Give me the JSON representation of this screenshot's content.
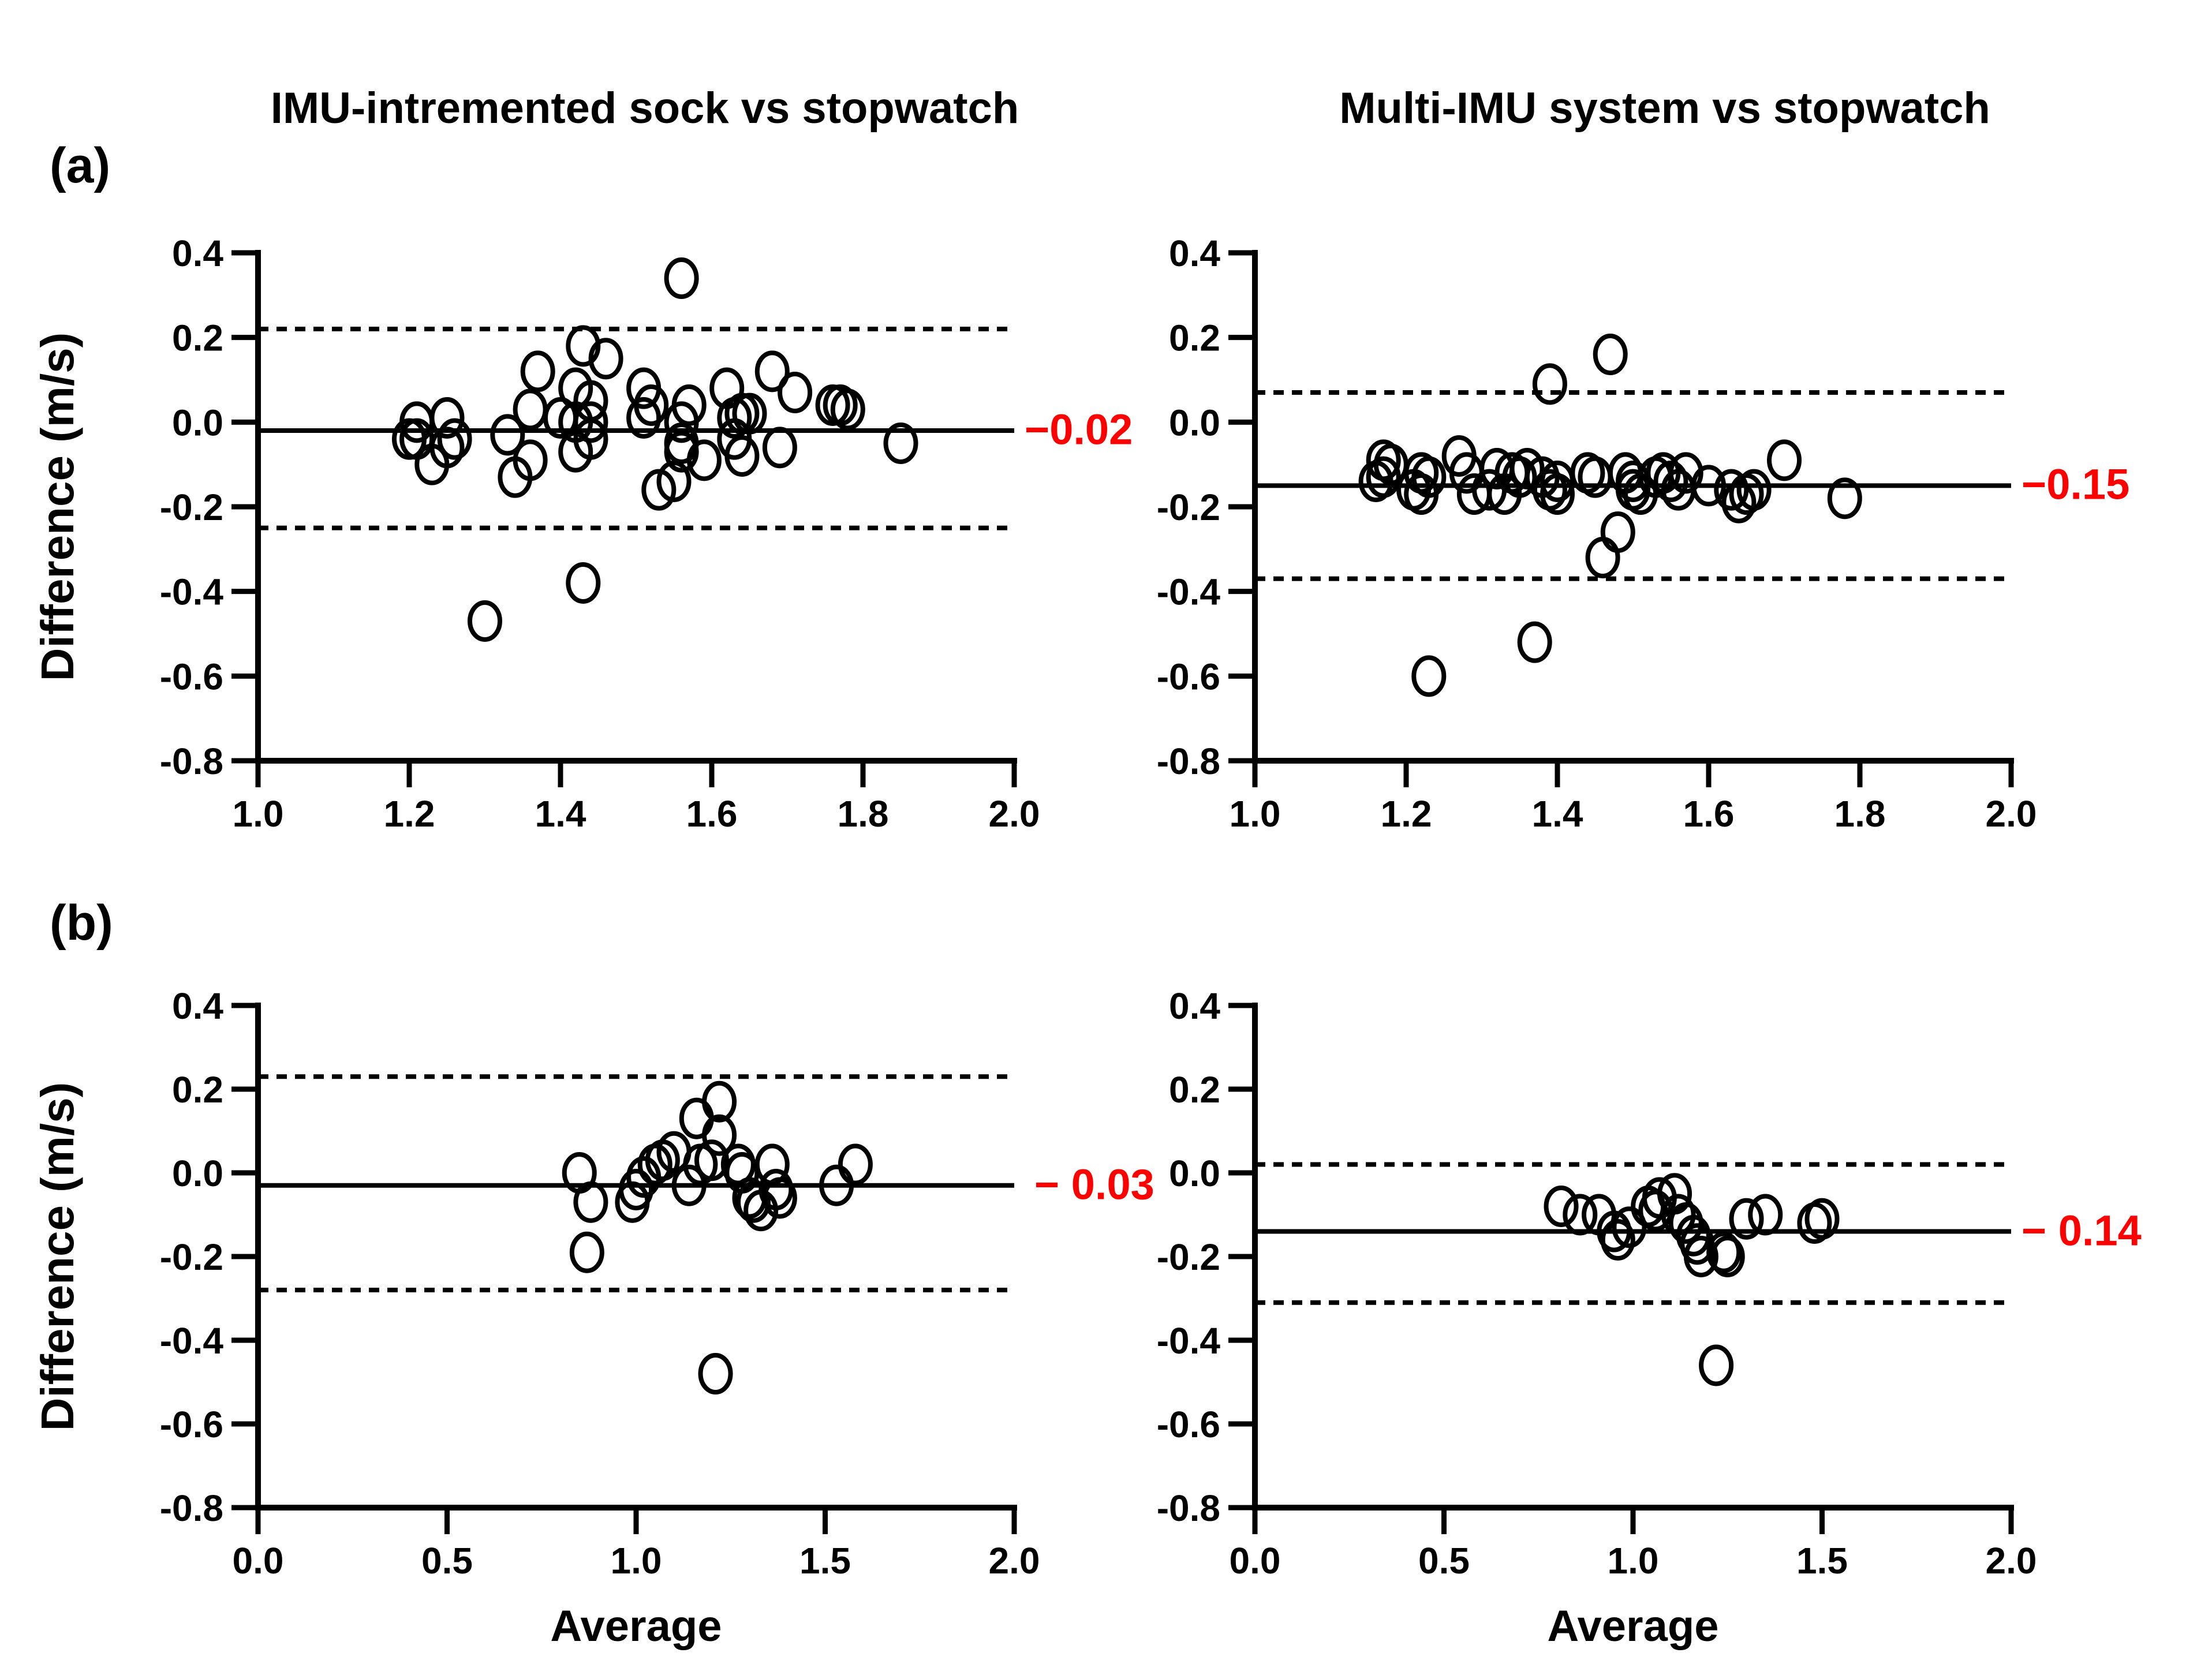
{
  "figure": {
    "titles": {
      "left": "IMU-intremented sock vs stopwatch",
      "right": "Multi-IMU system vs stopwatch"
    },
    "panel_labels": {
      "a": "(a)",
      "b": "(b)"
    },
    "y_axis_label": "Difference (m/s)",
    "x_axis_label": "Average",
    "colors": {
      "text": "#000000",
      "annotation_red": "#FF0000",
      "background": "#FFFFFF"
    },
    "marker": "open-circle"
  },
  "chart_data": [
    {
      "id": "a_left",
      "type": "scatter",
      "panel": "(a)",
      "title": "IMU-intremented sock vs stopwatch",
      "xlabel": "",
      "ylabel": "Difference (m/s)",
      "xlim": [
        1.0,
        2.0
      ],
      "ylim": [
        -0.8,
        0.4
      ],
      "xtick_values": [
        1.0,
        1.2,
        1.4,
        1.6,
        1.8,
        2.0
      ],
      "xtick_labels": [
        "1.0",
        "1.2",
        "1.4",
        "1.6",
        "1.8",
        "2.0"
      ],
      "ytick_values": [
        0.4,
        0.2,
        0.0,
        -0.2,
        -0.4,
        -0.6,
        -0.8
      ],
      "ytick_labels": [
        "0.4",
        "0.2",
        "0.0",
        "-0.2",
        "-0.4",
        "-0.6",
        "-0.8"
      ],
      "mean_bias": -0.02,
      "mean_label": "−0.02",
      "loa_upper": 0.22,
      "loa_lower": -0.25,
      "points": [
        [
          1.56,
          0.34
        ],
        [
          1.43,
          0.18
        ],
        [
          1.46,
          0.15
        ],
        [
          1.37,
          0.12
        ],
        [
          1.68,
          0.12
        ],
        [
          1.42,
          0.08
        ],
        [
          1.51,
          0.08
        ],
        [
          1.62,
          0.08
        ],
        [
          1.71,
          0.07
        ],
        [
          1.44,
          0.05
        ],
        [
          1.52,
          0.04
        ],
        [
          1.57,
          0.04
        ],
        [
          1.76,
          0.04
        ],
        [
          1.77,
          0.04
        ],
        [
          1.78,
          0.03
        ],
        [
          1.36,
          0.03
        ],
        [
          1.64,
          0.02
        ],
        [
          1.65,
          0.02
        ],
        [
          1.4,
          0.01
        ],
        [
          1.25,
          0.01
        ],
        [
          1.51,
          0.01
        ],
        [
          1.63,
          0.01
        ],
        [
          1.21,
          0.0
        ],
        [
          1.42,
          0.0
        ],
        [
          1.44,
          0.0
        ],
        [
          1.56,
          0.0
        ],
        [
          1.2,
          -0.04
        ],
        [
          1.21,
          -0.04
        ],
        [
          1.26,
          -0.04
        ],
        [
          1.33,
          -0.03
        ],
        [
          1.44,
          -0.04
        ],
        [
          1.63,
          -0.04
        ],
        [
          1.25,
          -0.06
        ],
        [
          1.56,
          -0.05
        ],
        [
          1.69,
          -0.06
        ],
        [
          1.85,
          -0.05
        ],
        [
          1.42,
          -0.07
        ],
        [
          1.56,
          -0.07
        ],
        [
          1.64,
          -0.08
        ],
        [
          1.36,
          -0.09
        ],
        [
          1.59,
          -0.09
        ],
        [
          1.23,
          -0.1
        ],
        [
          1.34,
          -0.13
        ],
        [
          1.55,
          -0.14
        ],
        [
          1.53,
          -0.16
        ],
        [
          1.43,
          -0.38
        ],
        [
          1.3,
          -0.47
        ]
      ]
    },
    {
      "id": "a_right",
      "type": "scatter",
      "panel": "(a)",
      "title": "Multi-IMU system vs stopwatch",
      "xlabel": "",
      "ylabel": "Difference (m/s)",
      "xlim": [
        1.0,
        2.0
      ],
      "ylim": [
        -0.8,
        0.4
      ],
      "xtick_values": [
        1.0,
        1.2,
        1.4,
        1.6,
        1.8,
        2.0
      ],
      "xtick_labels": [
        "1.0",
        "1.2",
        "1.4",
        "1.6",
        "1.8",
        "2.0"
      ],
      "ytick_values": [
        0.4,
        0.2,
        0.0,
        -0.2,
        -0.4,
        -0.6,
        -0.8
      ],
      "ytick_labels": [
        "0.4",
        "0.2",
        "0.0",
        "-0.2",
        "-0.4",
        "-0.6",
        "-0.8"
      ],
      "mean_bias": -0.15,
      "mean_label": "−0.15",
      "loa_upper": 0.07,
      "loa_lower": -0.37,
      "points": [
        [
          1.47,
          0.16
        ],
        [
          1.39,
          0.09
        ],
        [
          1.17,
          -0.09
        ],
        [
          1.18,
          -0.1
        ],
        [
          1.17,
          -0.13
        ],
        [
          1.16,
          -0.14
        ],
        [
          1.21,
          -0.16
        ],
        [
          1.22,
          -0.17
        ],
        [
          1.22,
          -0.12
        ],
        [
          1.23,
          -0.13
        ],
        [
          1.27,
          -0.08
        ],
        [
          1.28,
          -0.12
        ],
        [
          1.29,
          -0.17
        ],
        [
          1.31,
          -0.16
        ],
        [
          1.32,
          -0.11
        ],
        [
          1.33,
          -0.17
        ],
        [
          1.34,
          -0.12
        ],
        [
          1.35,
          -0.13
        ],
        [
          1.36,
          -0.11
        ],
        [
          1.38,
          -0.13
        ],
        [
          1.39,
          -0.16
        ],
        [
          1.4,
          -0.14
        ],
        [
          1.4,
          -0.17
        ],
        [
          1.44,
          -0.12
        ],
        [
          1.45,
          -0.13
        ],
        [
          1.49,
          -0.12
        ],
        [
          1.5,
          -0.14
        ],
        [
          1.5,
          -0.16
        ],
        [
          1.51,
          -0.17
        ],
        [
          1.53,
          -0.13
        ],
        [
          1.54,
          -0.12
        ],
        [
          1.55,
          -0.14
        ],
        [
          1.56,
          -0.16
        ],
        [
          1.57,
          -0.12
        ],
        [
          1.6,
          -0.15
        ],
        [
          1.63,
          -0.16
        ],
        [
          1.64,
          -0.19
        ],
        [
          1.65,
          -0.17
        ],
        [
          1.66,
          -0.16
        ],
        [
          1.7,
          -0.09
        ],
        [
          1.78,
          -0.18
        ],
        [
          1.48,
          -0.26
        ],
        [
          1.46,
          -0.32
        ],
        [
          1.37,
          -0.52
        ],
        [
          1.23,
          -0.6
        ]
      ]
    },
    {
      "id": "b_left",
      "type": "scatter",
      "panel": "(b)",
      "title": "IMU-intremented sock vs stopwatch",
      "xlabel": "Average",
      "ylabel": "Difference (m/s)",
      "xlim": [
        0.0,
        2.0
      ],
      "ylim": [
        -0.8,
        0.4
      ],
      "xtick_values": [
        0.0,
        0.5,
        1.0,
        1.5,
        2.0
      ],
      "xtick_labels": [
        "0.0",
        "0.5",
        "1.0",
        "1.5",
        "2.0"
      ],
      "ytick_values": [
        0.4,
        0.2,
        0.0,
        -0.2,
        -0.4,
        -0.6,
        -0.8
      ],
      "ytick_labels": [
        "0.4",
        "0.2",
        "0.0",
        "-0.2",
        "-0.4",
        "-0.6",
        "-0.8"
      ],
      "mean_bias": -0.03,
      "mean_label": "− 0.03",
      "loa_upper": 0.23,
      "loa_lower": -0.28,
      "points": [
        [
          0.85,
          0.0
        ],
        [
          0.88,
          -0.07
        ],
        [
          0.87,
          -0.19
        ],
        [
          0.99,
          -0.07
        ],
        [
          1.0,
          -0.04
        ],
        [
          1.02,
          -0.01
        ],
        [
          1.05,
          0.02
        ],
        [
          1.07,
          0.03
        ],
        [
          1.1,
          0.05
        ],
        [
          1.14,
          -0.03
        ],
        [
          1.16,
          0.13
        ],
        [
          1.22,
          0.17
        ],
        [
          1.17,
          0.02
        ],
        [
          1.2,
          0.03
        ],
        [
          1.22,
          0.09
        ],
        [
          1.27,
          0.02
        ],
        [
          1.28,
          0.0
        ],
        [
          1.3,
          -0.06
        ],
        [
          1.31,
          -0.07
        ],
        [
          1.33,
          -0.09
        ],
        [
          1.36,
          0.02
        ],
        [
          1.37,
          -0.04
        ],
        [
          1.38,
          -0.06
        ],
        [
          1.53,
          -0.03
        ],
        [
          1.58,
          0.02
        ],
        [
          1.21,
          -0.48
        ]
      ]
    },
    {
      "id": "b_right",
      "type": "scatter",
      "panel": "(b)",
      "title": "Multi-IMU system vs stopwatch",
      "xlabel": "Average",
      "ylabel": "Difference (m/s)",
      "xlim": [
        0.0,
        2.0
      ],
      "ylim": [
        -0.8,
        0.4
      ],
      "xtick_values": [
        0.0,
        0.5,
        1.0,
        1.5,
        2.0
      ],
      "xtick_labels": [
        "0.0",
        "0.5",
        "1.0",
        "1.5",
        "2.0"
      ],
      "ytick_values": [
        0.4,
        0.2,
        0.0,
        -0.2,
        -0.4,
        -0.6,
        -0.8
      ],
      "ytick_labels": [
        "0.4",
        "0.2",
        "0.0",
        "-0.2",
        "-0.4",
        "-0.6",
        "-0.8"
      ],
      "mean_bias": -0.14,
      "mean_label": "− 0.14",
      "loa_upper": 0.02,
      "loa_lower": -0.31,
      "points": [
        [
          0.81,
          -0.08
        ],
        [
          0.86,
          -0.1
        ],
        [
          0.91,
          -0.1
        ],
        [
          0.95,
          -0.14
        ],
        [
          0.96,
          -0.16
        ],
        [
          0.99,
          -0.13
        ],
        [
          1.04,
          -0.08
        ],
        [
          1.06,
          -0.09
        ],
        [
          1.07,
          -0.06
        ],
        [
          1.11,
          -0.05
        ],
        [
          1.12,
          -0.1
        ],
        [
          1.14,
          -0.12
        ],
        [
          1.16,
          -0.15
        ],
        [
          1.17,
          -0.17
        ],
        [
          1.18,
          -0.2
        ],
        [
          1.24,
          -0.19
        ],
        [
          1.25,
          -0.2
        ],
        [
          1.3,
          -0.11
        ],
        [
          1.35,
          -0.1
        ],
        [
          1.48,
          -0.12
        ],
        [
          1.5,
          -0.11
        ],
        [
          1.22,
          -0.46
        ]
      ]
    }
  ]
}
